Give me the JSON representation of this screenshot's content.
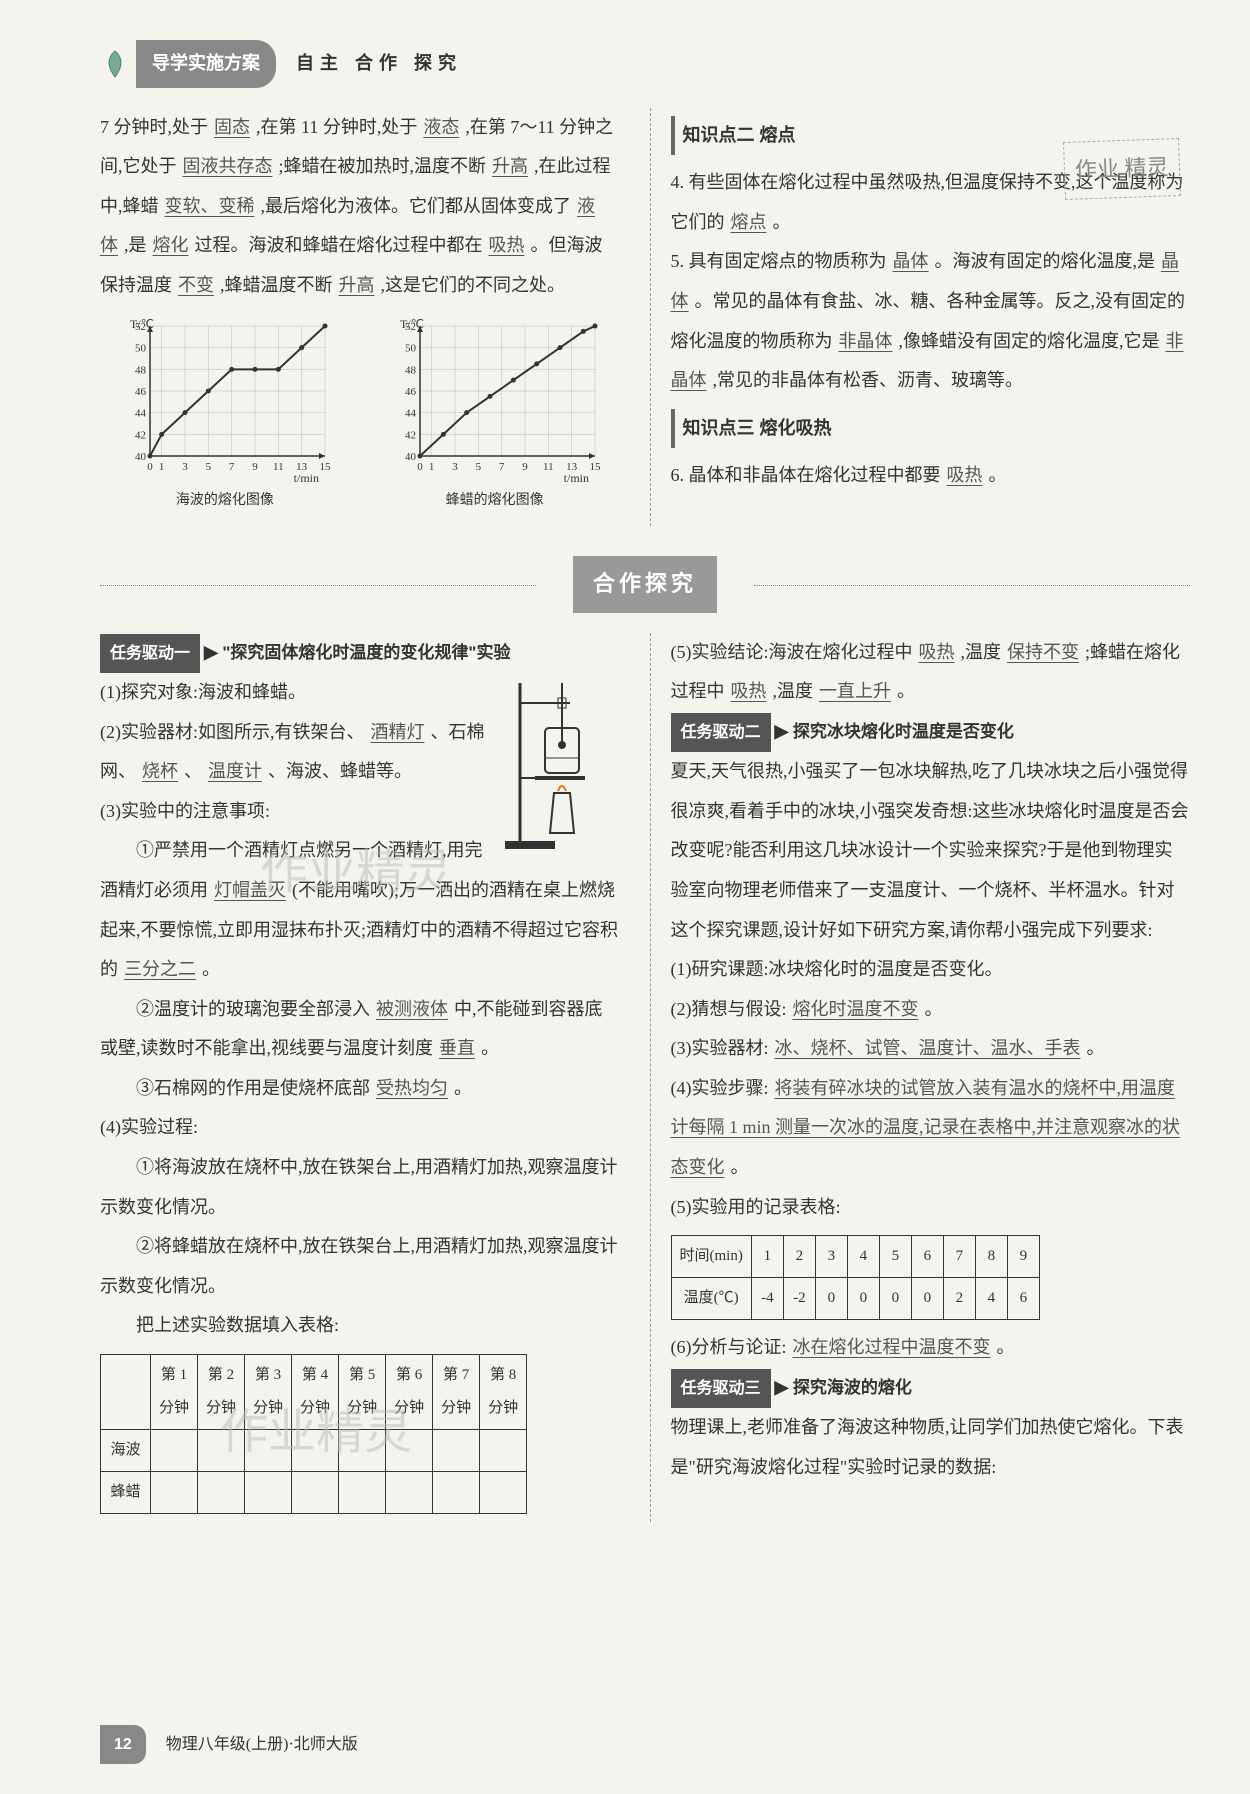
{
  "header": {
    "badge": "导学实施方案",
    "sub": "自主  合作  探究"
  },
  "stamp": "作业\n精灵",
  "left_top_para": {
    "t1": "7 分钟时,处于",
    "u1": "固态",
    "t2": ",在第 11 分钟时,处于",
    "u2": "液态",
    "t3": ",在第 7～11 分钟之间,它处于",
    "u3": "固液共存态",
    "t4": ";蜂蜡在被加热时,温度不断",
    "u4": "升高",
    "t5": ",在此过程中,蜂蜡",
    "u5": "变软、变稀",
    "t6": ",最后熔化为液体。它们都从固体变成了",
    "u6": "液体",
    "t7": ",是",
    "u7": "熔化",
    "t8": "过程。海波和蜂蜡在熔化过程中都在",
    "u8": "吸热",
    "t9": "。但海波保持温度",
    "u9": "不变",
    "t10": ",蜂蜡温度不断",
    "u10": "升高",
    "t11": ",这是它们的不同之处。"
  },
  "charts": {
    "haibo": {
      "caption": "海波的熔化图像",
      "y_label": "T/℃",
      "x_label": "t/min",
      "y_ticks": [
        "40",
        "42",
        "44",
        "46",
        "48",
        "50",
        "52"
      ],
      "x_ticks": [
        "0",
        "1",
        "3",
        "5",
        "7",
        "9",
        "11",
        "13",
        "15"
      ],
      "points": [
        [
          0,
          40
        ],
        [
          1,
          42
        ],
        [
          3,
          44
        ],
        [
          5,
          46
        ],
        [
          7,
          48
        ],
        [
          9,
          48
        ],
        [
          11,
          48
        ],
        [
          13,
          50
        ],
        [
          15,
          52
        ]
      ],
      "line_color": "#333",
      "bg": "#f5f3ee"
    },
    "fengla": {
      "caption": "蜂蜡的熔化图像",
      "y_label": "T/℃",
      "x_label": "t/min",
      "y_ticks": [
        "40",
        "42",
        "44",
        "46",
        "48",
        "50",
        "52"
      ],
      "x_ticks": [
        "0",
        "1",
        "3",
        "5",
        "7",
        "9",
        "11",
        "13",
        "15"
      ],
      "points": [
        [
          0,
          40
        ],
        [
          2,
          42
        ],
        [
          4,
          44
        ],
        [
          6,
          45.5
        ],
        [
          8,
          47
        ],
        [
          10,
          48.5
        ],
        [
          12,
          50
        ],
        [
          14,
          51.5
        ],
        [
          15,
          52
        ]
      ],
      "line_color": "#333",
      "bg": "#f5f3ee"
    }
  },
  "right_top": {
    "title2": "知识点二  熔点",
    "q4a": "4. 有些固体在熔化过程中虽然吸热,但温度保持不变,这个温度称为它们的",
    "q4u": "熔点",
    "q4b": "。",
    "q5a": "5. 具有固定熔点的物质称为",
    "q5u1": "晶体",
    "q5b": "。海波有固定的熔化温度,是",
    "q5u2": "晶体",
    "q5c": "。常见的晶体有食盐、冰、糖、各种金属等。反之,没有固定的熔化温度的物质称为",
    "q5u3": "非晶体",
    "q5d": ",像蜂蜡没有固定的熔化温度,它是",
    "q5u4": "非晶体",
    "q5e": ",常见的非晶体有松香、沥青、玻璃等。",
    "title3": "知识点三  熔化吸热",
    "q6a": "6. 晶体和非晶体在熔化过程中都要",
    "q6u": "吸热",
    "q6b": "。"
  },
  "banner": "合作探究",
  "task1": {
    "badge": "任务驱动一",
    "title": "\"探究固体熔化时温度的变化规律\"实验",
    "l1": "(1)探究对象:海波和蜂蜡。",
    "l2a": "(2)实验器材:如图所示,有铁架台、",
    "l2u1": "酒精灯",
    "l2b": "、石棉网、",
    "l2u2": "烧杯",
    "l2c": "、",
    "l2u3": "温度计",
    "l2d": "、海波、蜂蜡等。",
    "l3": "(3)实验中的注意事项:",
    "l3_1a": "①严禁用一个酒精灯点燃另一个酒精灯,用完酒精灯必须用",
    "l3_1u": "灯帽盖灭",
    "l3_1b": "(不能用嘴吹);万一洒出的酒精在桌上燃烧起来,不要惊慌,立即用湿抹布扑灭;酒精灯中的酒精不得超过它容积的",
    "l3_1u2": "三分之二",
    "l3_1c": "。",
    "l3_2a": "②温度计的玻璃泡要全部浸入",
    "l3_2u": "被测液体",
    "l3_2b": "中,不能碰到容器底或壁,读数时不能拿出,视线要与温度计刻度",
    "l3_2u2": "垂直",
    "l3_2c": "。",
    "l3_3a": "③石棉网的作用是使烧杯底部",
    "l3_3u": "受热均匀",
    "l3_3b": "。",
    "l4": "(4)实验过程:",
    "l4_1": "①将海波放在烧杯中,放在铁架台上,用酒精灯加热,观察温度计示数变化情况。",
    "l4_2": "②将蜂蜡放在烧杯中,放在铁架台上,用酒精灯加热,观察温度计示数变化情况。",
    "l4_3": "把上述实验数据填入表格:"
  },
  "table1": {
    "headers": [
      "",
      "第 1\n分钟",
      "第 2\n分钟",
      "第 3\n分钟",
      "第 4\n分钟",
      "第 5\n分钟",
      "第 6\n分钟",
      "第 7\n分钟",
      "第 8\n分钟"
    ],
    "rows": [
      [
        "海波",
        "",
        "",
        "",
        "",
        "",
        "",
        "",
        ""
      ],
      [
        "蜂蜡",
        "",
        "",
        "",
        "",
        "",
        "",
        "",
        ""
      ]
    ]
  },
  "task1_right": {
    "l5a": "(5)实验结论:海波在熔化过程中",
    "l5u1": "吸热",
    "l5b": ",温度",
    "l5u2": "保持不变",
    "l5c": ";蜂蜡在熔化过程中",
    "l5u3": "吸热",
    "l5d": ",温度",
    "l5u4": "一直上升",
    "l5e": "。"
  },
  "task2": {
    "badge": "任务驱动二",
    "title": "探究冰块熔化时温度是否变化",
    "intro": "夏天,天气很热,小强买了一包冰块解热,吃了几块冰块之后小强觉得很凉爽,看着手中的冰块,小强突发奇想:这些冰块熔化时温度是否会改变呢?能否利用这几块冰设计一个实验来探究?于是他到物理实验室向物理老师借来了一支温度计、一个烧杯、半杯温水。针对这个探究课题,设计好如下研究方案,请你帮小强完成下列要求:",
    "q1": "(1)研究课题:冰块熔化时的温度是否变化。",
    "q2a": "(2)猜想与假设:",
    "q2u": "熔化时温度不变",
    "q2b": "。",
    "q3a": "(3)实验器材:",
    "q3u": "冰、烧杯、试管、温度计、温水、手表",
    "q3b": "。",
    "q4a": "(4)实验步骤:",
    "q4u": "将装有碎冰块的试管放入装有温水的烧杯中,用温度计每隔 1 min 测量一次冰的温度,记录在表格中,并注意观察冰的状态变化",
    "q4b": "。",
    "q5": "(5)实验用的记录表格:"
  },
  "table2": {
    "row1": [
      "时间(min)",
      "1",
      "2",
      "3",
      "4",
      "5",
      "6",
      "7",
      "8",
      "9"
    ],
    "row2": [
      "温度(℃)",
      "-4",
      "-2",
      "0",
      "0",
      "0",
      "0",
      "2",
      "4",
      "6"
    ]
  },
  "task2_tail": {
    "q6a": "(6)分析与论证:",
    "q6u": "冰在熔化过程中温度不变",
    "q6b": "。"
  },
  "task3": {
    "badge": "任务驱动三",
    "title": "探究海波的熔化",
    "body": "物理课上,老师准备了海波这种物质,让同学们加热使它熔化。下表是\"研究海波熔化过程\"实验时记录的数据:"
  },
  "footer": {
    "page": "12",
    "text": "物理八年级(上册)·北师大版"
  },
  "watermarks": {
    "w1": "作业精灵",
    "w2": "作业精灵"
  }
}
